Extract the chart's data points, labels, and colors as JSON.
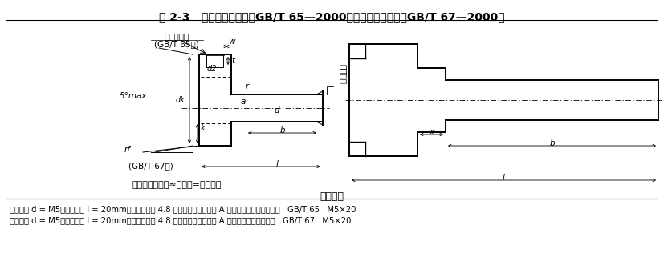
{
  "title": "表 2-3   开槽圆柱头螺钉（GB/T 65—2000）、开槽盘头螺钉（GB/T 67—2000）",
  "bg_color": "#ffffff",
  "label_note": "无螺纹部分杆径≈中径或=螺纹大径",
  "section_title": "标记示例",
  "line1": "螺纹规格 d = M5、公称长度 l = 20mm、性能等级为 4.8 级、不经表面处理的 A 级开槽圆柱头螺钉：螺钉   GB/T 65   M5×20",
  "line2": "螺纹规格 d = M5、公称长度 l = 20mm、性能等级为 4.8 级、不经表面处理的 A 级开槽盘头螺钉：螺钉   GB/T 67   M5×20",
  "anno_round_flat_1": "圆的或平的",
  "anno_round_flat_2": "(GB/T 65用)",
  "anno_thread_end": "螺纹末端",
  "anno_5deg": "5°max",
  "anno_gb67": "(GB/T 67用)",
  "dim_w": "w",
  "dim_t": "t",
  "dim_r": "r",
  "dim_dk": "dk",
  "dim_d2": "d2",
  "dim_d": "d",
  "dim_b": "b",
  "dim_k": "k",
  "dim_a": "a",
  "dim_rf": "rf",
  "dim_l": "l",
  "dim_x": "x",
  "black": "#000000"
}
